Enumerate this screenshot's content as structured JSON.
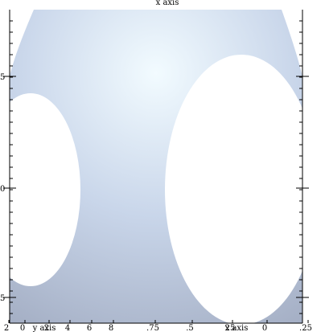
{
  "chart_data": {
    "type": "area",
    "title": "x axis",
    "bottom_axis_labels": [
      "y axis",
      "x axis"
    ],
    "bottom_tick_labels": [
      "2",
      "0",
      "2",
      "4",
      "6",
      "8",
      ".75",
      ".5",
      "25",
      "0",
      ".25"
    ],
    "left_tick_labels": [
      "5",
      "0",
      "5"
    ],
    "grid": false,
    "surface": {
      "outer_top": {
        "from": [
          0.1,
          1.0
        ],
        "peak": [
          0.5,
          1.25
        ],
        "to": [
          0.92,
          1.0
        ]
      },
      "left_cutout": {
        "center": [
          -0.04,
          0.47
        ],
        "radius_x": 0.18,
        "radius_y": 0.34
      },
      "right_cutout": {
        "center": [
          0.75,
          0.47
        ],
        "radius_x": 0.23,
        "radius_y": 0.42
      }
    },
    "colors": {
      "surface_light": "#f2fbff",
      "surface_mid": "#c9d6ea",
      "surface_dark": "#9ea8be",
      "axis": "#000000",
      "background": "#ffffff"
    }
  }
}
